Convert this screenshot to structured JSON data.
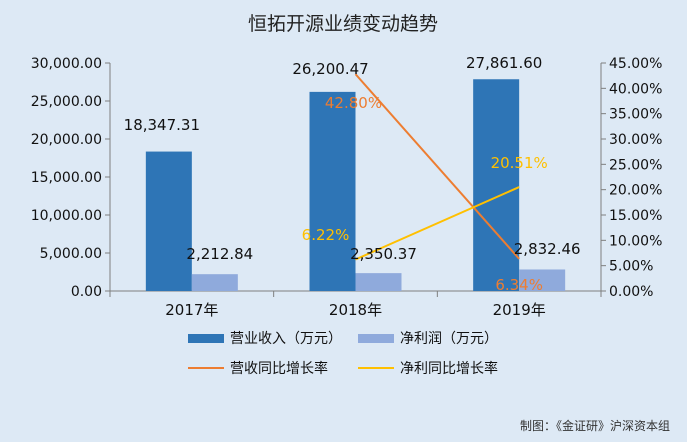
{
  "chart_data": {
    "type": "bar",
    "title": "恒拓开源业绩变动趋势",
    "categories": [
      "2017年",
      "2018年",
      "2019年"
    ],
    "series": [
      {
        "name": "营业收入（万元）",
        "kind": "bar",
        "axis": "left",
        "color": "#2e75b6",
        "values": [
          18347.31,
          26200.47,
          27861.6
        ],
        "labels": [
          "18,347.31",
          "26,200.47",
          "27,861.60"
        ]
      },
      {
        "name": "净利润（万元）",
        "kind": "bar",
        "axis": "left",
        "color": "#8faadc",
        "values": [
          2212.84,
          2350.37,
          2832.46
        ],
        "labels": [
          "2,212.84",
          "2,350.37",
          "2,832.46"
        ]
      },
      {
        "name": "营收同比增长率",
        "kind": "line",
        "axis": "right",
        "color": "#ed7d31",
        "values": [
          null,
          42.8,
          6.34
        ],
        "labels": [
          "",
          "42.80%",
          "6.34%"
        ]
      },
      {
        "name": "净利同比增长率",
        "kind": "line",
        "axis": "right",
        "color": "#ffc000",
        "values": [
          null,
          6.22,
          20.51
        ],
        "labels": [
          "",
          "6.22%",
          "20.51%"
        ]
      }
    ],
    "y_left": {
      "min": 0,
      "max": 30000,
      "step": 5000,
      "ticks": [
        "0.00",
        "5,000.00",
        "10,000.00",
        "15,000.00",
        "20,000.00",
        "25,000.00",
        "30,000.00"
      ]
    },
    "y_right": {
      "min": 0,
      "max": 45,
      "step": 5,
      "ticks": [
        "0.00%",
        "5.00%",
        "10.00%",
        "15.00%",
        "20.00%",
        "25.00%",
        "30.00%",
        "35.00%",
        "40.00%",
        "45.00%"
      ]
    },
    "grid": false,
    "legend": "bottom",
    "source": "制图：《金证研》沪深资本组"
  }
}
